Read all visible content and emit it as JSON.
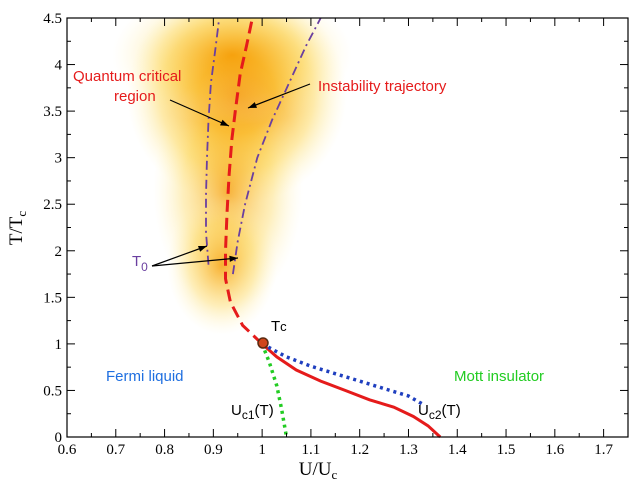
{
  "chart_data": {
    "type": "line",
    "xlabel_main": "U/U",
    "xlabel_sub": "c",
    "ylabel_main": "T/T",
    "ylabel_sub": "c",
    "xlim": [
      0.6,
      1.75
    ],
    "ylim": [
      0,
      4.5
    ],
    "x_ticks": [
      "0.6",
      "0.7",
      "0.8",
      "0.9",
      "1",
      "1.1",
      "1.2",
      "1.3",
      "1.4",
      "1.5",
      "1.6",
      "1.7"
    ],
    "y_ticks": [
      "0",
      "0.5",
      "1",
      "1.5",
      "2",
      "2.5",
      "3",
      "3.5",
      "4",
      "4.5"
    ],
    "grid": false,
    "series": [
      {
        "style": "solid",
        "color": "#e51b1b",
        "points": [
          [
            1.0,
            1.0
          ],
          [
            1.03,
            0.86
          ],
          [
            1.07,
            0.72
          ],
          [
            1.12,
            0.6
          ],
          [
            1.17,
            0.5
          ],
          [
            1.22,
            0.4
          ],
          [
            1.27,
            0.32
          ],
          [
            1.31,
            0.22
          ],
          [
            1.34,
            0.12
          ],
          [
            1.365,
            0.0
          ]
        ]
      },
      {
        "style": "dashed",
        "color": "#e51b1b",
        "points": [
          [
            1.0,
            1.0
          ],
          [
            0.96,
            1.2
          ],
          [
            0.935,
            1.45
          ],
          [
            0.925,
            1.7
          ],
          [
            0.925,
            2.0
          ],
          [
            0.928,
            2.4
          ],
          [
            0.932,
            2.8
          ],
          [
            0.938,
            3.2
          ],
          [
            0.945,
            3.5
          ],
          [
            0.955,
            3.9
          ],
          [
            0.968,
            4.2
          ],
          [
            0.98,
            4.5
          ]
        ]
      },
      {
        "style": "dotted",
        "color": "#1f3fbf",
        "points": [
          [
            1.0,
            1.0
          ],
          [
            1.05,
            0.86
          ],
          [
            1.1,
            0.76
          ],
          [
            1.15,
            0.68
          ],
          [
            1.2,
            0.6
          ],
          [
            1.25,
            0.52
          ],
          [
            1.3,
            0.44
          ],
          [
            1.33,
            0.35
          ]
        ]
      },
      {
        "style": "dotted",
        "color": "#22cc22",
        "points": [
          [
            1.0,
            1.0
          ],
          [
            1.015,
            0.8
          ],
          [
            1.03,
            0.55
          ],
          [
            1.04,
            0.3
          ],
          [
            1.05,
            0.0
          ]
        ]
      },
      {
        "style": "dashdot",
        "color": "#6a3fa0",
        "points": [
          [
            0.89,
            1.85
          ],
          [
            0.885,
            2.2
          ],
          [
            0.885,
            2.6
          ],
          [
            0.887,
            3.0
          ],
          [
            0.89,
            3.4
          ],
          [
            0.895,
            3.8
          ],
          [
            0.905,
            4.2
          ],
          [
            0.912,
            4.5
          ]
        ]
      },
      {
        "style": "dashdot",
        "color": "#6a3fa0",
        "points": [
          [
            0.94,
            1.75
          ],
          [
            0.95,
            2.1
          ],
          [
            0.965,
            2.5
          ],
          [
            0.99,
            3.0
          ],
          [
            1.02,
            3.4
          ],
          [
            1.055,
            3.8
          ],
          [
            1.09,
            4.2
          ],
          [
            1.12,
            4.5
          ]
        ]
      }
    ],
    "critical_point": {
      "label": "T",
      "label_sub": "c",
      "x": 1.0,
      "y": 1.0
    },
    "annotations": [
      {
        "text": "Quantum critical",
        "color": "#e51b1b"
      },
      {
        "text": "region",
        "color": "#e51b1b"
      },
      {
        "text": "Instability trajectory",
        "color": "#e51b1b"
      },
      {
        "text": "T",
        "sub": "0",
        "color": "#6a3fa0"
      },
      {
        "text": "Fermi liquid",
        "color": "#1f6fe0"
      },
      {
        "text": "Mott insulator",
        "color": "#22cc22"
      },
      {
        "text": "U",
        "sub": "c1",
        "suffix": "(T)",
        "color": "#000000"
      },
      {
        "text": "U",
        "sub": "c2",
        "suffix": "(T)",
        "color": "#000000"
      }
    ]
  }
}
